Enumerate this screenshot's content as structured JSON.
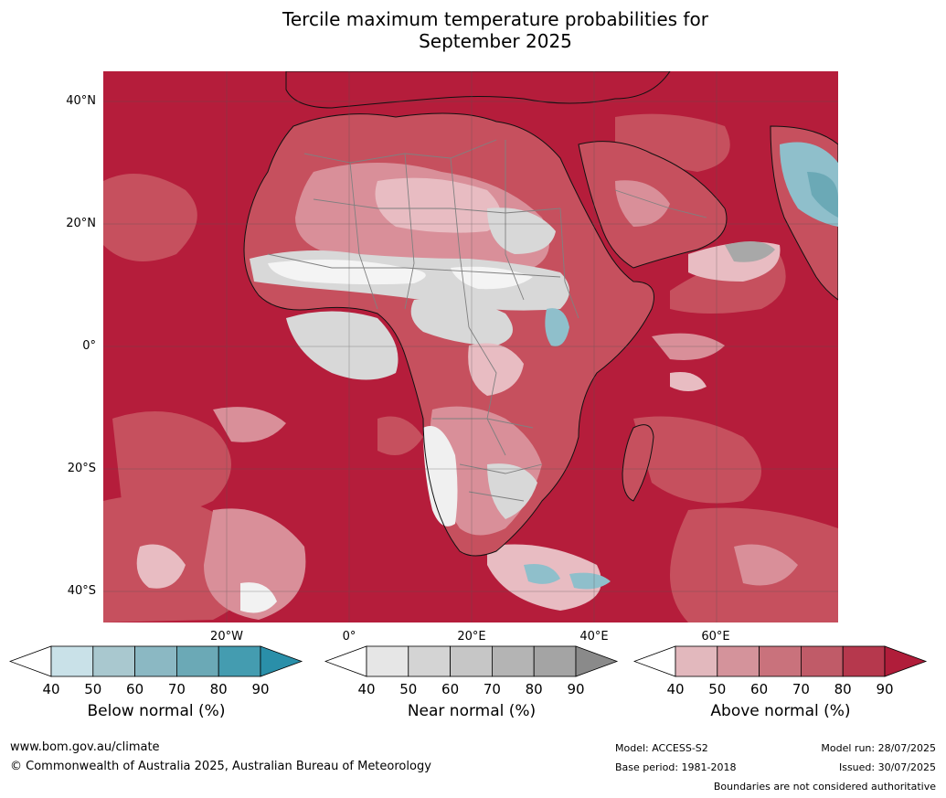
{
  "title_line1": "Tercile maximum temperature probabilities for",
  "title_line2": "September 2025",
  "lat_labels": [
    "40°N",
    "20°N",
    "0°",
    "20°S",
    "40°S"
  ],
  "lon_labels": [
    "20°W",
    "0°",
    "20°E",
    "40°E",
    "60°E"
  ],
  "colorbars": [
    {
      "label": "Below normal (%)",
      "ticks": [
        "40",
        "50",
        "60",
        "70",
        "80",
        "90"
      ],
      "colors": [
        "#ffffff",
        "#c9e1e8",
        "#a9c8cf",
        "#8bb8c3",
        "#6ba9b6",
        "#449cb0",
        "#2a8fa9"
      ]
    },
    {
      "label": "Near normal (%)",
      "ticks": [
        "40",
        "50",
        "60",
        "70",
        "80",
        "90"
      ],
      "colors": [
        "#ffffff",
        "#e6e6e6",
        "#d4d4d4",
        "#c6c6c6",
        "#b4b4b4",
        "#a4a4a4",
        "#8a8a8a"
      ]
    },
    {
      "label": "Above normal (%)",
      "ticks": [
        "40",
        "50",
        "60",
        "70",
        "80",
        "90"
      ],
      "colors": [
        "#ffffff",
        "#e2b8bd",
        "#d4939b",
        "#c9727c",
        "#c05b68",
        "#b6384d",
        "#b01d3a"
      ]
    }
  ],
  "footer": {
    "website": "www.bom.gov.au/climate",
    "copyright": "© Commonwealth of Australia 2025, Australian Bureau of Meteorology",
    "model": "Model: ACCESS-S2",
    "base_period": "Base period: 1981-2018",
    "model_run": "Model run: 28/07/2025",
    "issued": "Issued: 30/07/2025",
    "disclaimer": "Boundaries are not considered authoritative"
  },
  "colors": {
    "ocean_above": "#b51d3b",
    "above_mid": "#c6505e",
    "above_light": "#d98f99",
    "above_pale": "#e8bcc2",
    "near": "#d8d8d8",
    "near_dark": "#a8a8a8",
    "below": "#8fbfcb",
    "coast": "#111111",
    "border": "#808080"
  }
}
